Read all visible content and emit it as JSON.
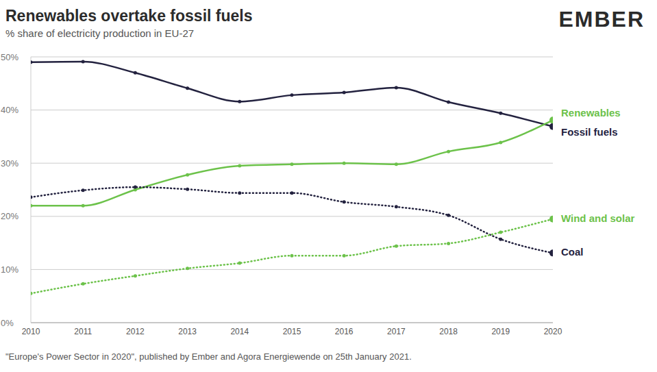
{
  "chart_data": {
    "type": "line",
    "title": "Renewables overtake fossil fuels",
    "subtitle": "% share of electricity production in EU-27",
    "source": "\"Europe's Power Sector in 2020\", published by Ember and Agora Energiewende on 25th January 2021.",
    "logo": "EMBER",
    "x": [
      2010,
      2011,
      2012,
      2013,
      2014,
      2015,
      2016,
      2017,
      2018,
      2019,
      2020
    ],
    "xlim": [
      2010,
      2020
    ],
    "xticks": [
      2010,
      2011,
      2012,
      2013,
      2014,
      2015,
      2016,
      2017,
      2018,
      2019,
      2020
    ],
    "ylim": [
      0,
      50
    ],
    "yticks": [
      {
        "value": 0,
        "label": "0%"
      },
      {
        "value": 10,
        "label": "10%"
      },
      {
        "value": 20,
        "label": "20%"
      },
      {
        "value": 30,
        "label": "30%"
      },
      {
        "value": 40,
        "label": "40%"
      },
      {
        "value": 50,
        "label": "50%"
      }
    ],
    "grid": true,
    "series": [
      {
        "name": "Fossil fuels",
        "color": "#23223f",
        "marker": "circle",
        "line_style": "solid",
        "values": [
          49.0,
          49.1,
          47.0,
          44.1,
          41.6,
          42.8,
          43.3,
          44.2,
          41.5,
          39.4,
          36.9
        ]
      },
      {
        "name": "Renewables",
        "color": "#6cc24a",
        "marker": "circle",
        "line_style": "solid",
        "values": [
          22.0,
          22.0,
          25.0,
          27.8,
          29.5,
          29.8,
          30.0,
          29.8,
          32.2,
          33.9,
          38.1
        ]
      },
      {
        "name": "Coal",
        "color": "#23223f",
        "marker": "circle",
        "line_style": "dotted",
        "values": [
          23.6,
          24.9,
          25.5,
          25.1,
          24.4,
          24.4,
          22.7,
          21.8,
          20.2,
          15.7,
          13.1
        ]
      },
      {
        "name": "Wind and solar",
        "color": "#6cc24a",
        "marker": "circle",
        "line_style": "dotted",
        "values": [
          5.5,
          7.3,
          8.8,
          10.2,
          11.2,
          12.6,
          12.6,
          14.4,
          14.9,
          17.0,
          19.5
        ]
      }
    ]
  }
}
